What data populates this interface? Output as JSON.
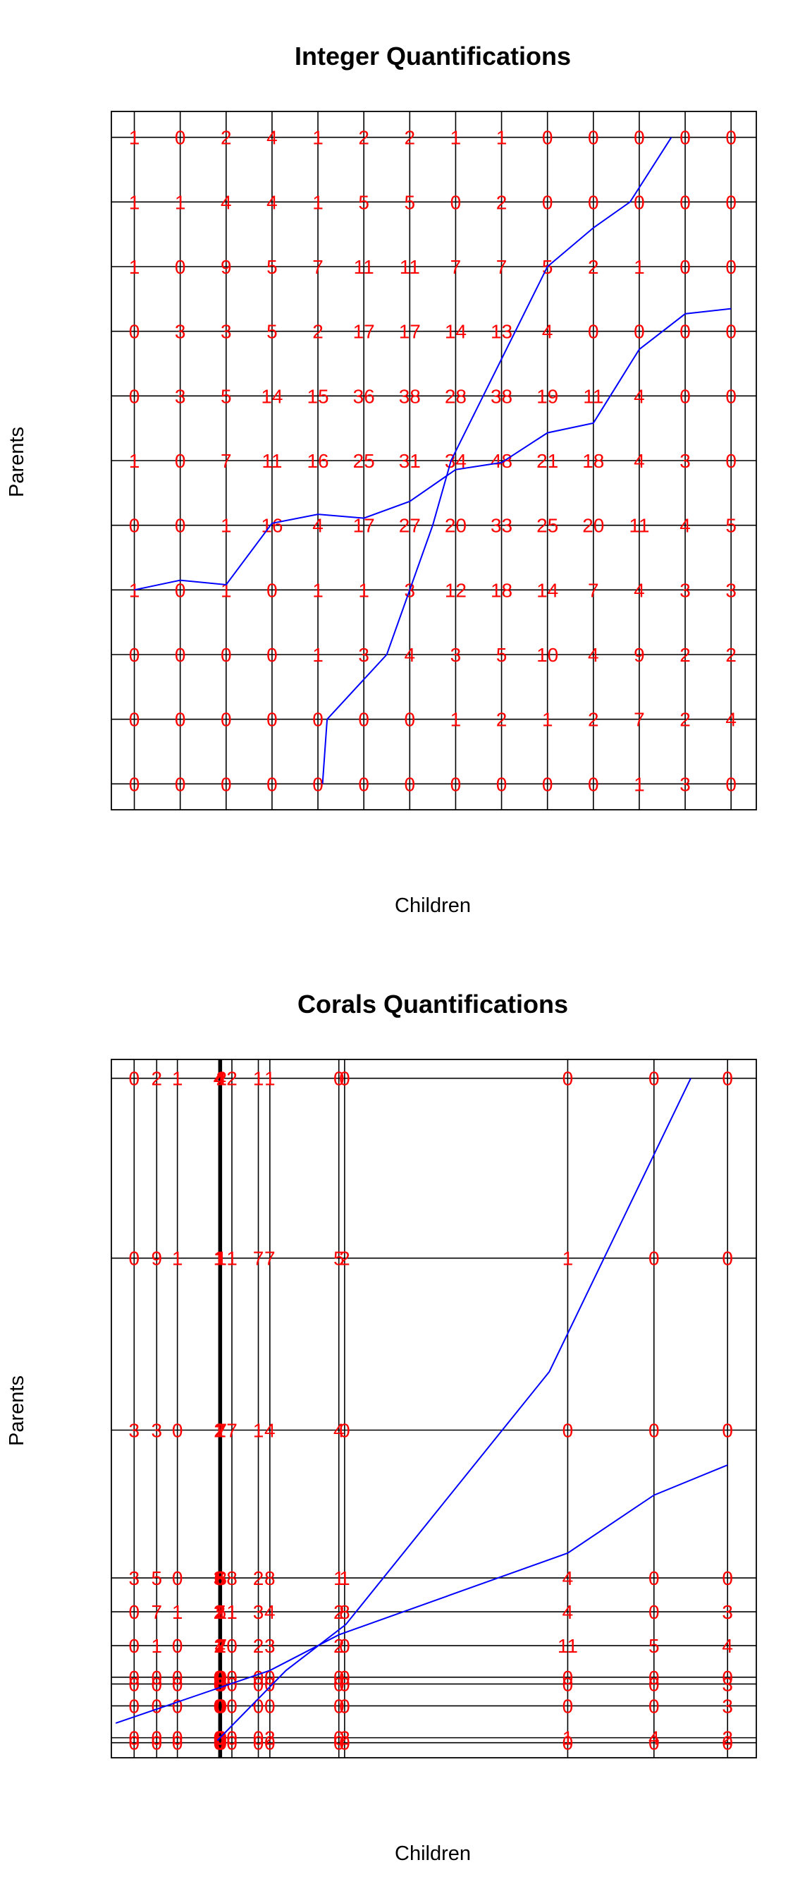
{
  "chart_data": [
    {
      "type": "table",
      "title": "Integer Quantifications",
      "xlabel": "Children",
      "ylabel": "Parents",
      "x_scores": [
        1,
        2,
        3,
        4,
        5,
        6,
        7,
        8,
        9,
        10,
        11,
        12,
        13,
        14
      ],
      "y_scores": [
        1,
        2,
        3,
        4,
        5,
        6,
        7,
        8,
        9,
        10,
        11
      ],
      "xlim": [
        0.5,
        14.55
      ],
      "ylim": [
        0.6,
        11.4
      ],
      "counts": [
        [
          0,
          0,
          0,
          0,
          0,
          0,
          0,
          0,
          0,
          0,
          0,
          1,
          3,
          0
        ],
        [
          0,
          0,
          0,
          0,
          0,
          0,
          0,
          1,
          2,
          1,
          2,
          7,
          2,
          4
        ],
        [
          0,
          0,
          0,
          0,
          1,
          3,
          4,
          3,
          5,
          10,
          4,
          9,
          2,
          2
        ],
        [
          1,
          0,
          1,
          0,
          1,
          1,
          3,
          12,
          18,
          14,
          7,
          4,
          3,
          3
        ],
        [
          0,
          0,
          1,
          16,
          4,
          17,
          27,
          20,
          33,
          25,
          20,
          11,
          4,
          5
        ],
        [
          1,
          0,
          7,
          11,
          16,
          25,
          31,
          34,
          48,
          21,
          18,
          4,
          3,
          0
        ],
        [
          0,
          3,
          5,
          14,
          15,
          36,
          38,
          28,
          38,
          19,
          11,
          4,
          0,
          0
        ],
        [
          0,
          3,
          3,
          5,
          2,
          17,
          17,
          14,
          13,
          4,
          0,
          0,
          0,
          0
        ],
        [
          1,
          0,
          9,
          5,
          7,
          11,
          11,
          7,
          7,
          5,
          2,
          1,
          0,
          0
        ],
        [
          1,
          1,
          4,
          4,
          1,
          5,
          5,
          0,
          2,
          0,
          0,
          0,
          0,
          0
        ],
        [
          1,
          0,
          2,
          4,
          1,
          2,
          2,
          1,
          1,
          0,
          0,
          0,
          0,
          0
        ]
      ],
      "series": [
        {
          "points": [
            [
              1,
              4
            ],
            [
              2,
              4.15
            ],
            [
              3,
              4.08
            ],
            [
              4,
              5.03
            ],
            [
              5,
              5.17
            ],
            [
              6,
              5.11
            ],
            [
              7,
              5.37
            ],
            [
              8,
              5.86
            ],
            [
              9,
              5.97
            ],
            [
              10,
              6.43
            ],
            [
              11,
              6.58
            ],
            [
              12,
              7.72
            ],
            [
              13,
              8.27
            ],
            [
              14,
              8.35
            ]
          ]
        },
        {
          "points": [
            [
              5.1,
              1
            ],
            [
              5.2,
              2
            ],
            [
              6.5,
              3
            ],
            [
              7,
              4
            ],
            [
              7.5,
              5
            ],
            [
              7.9,
              6
            ],
            [
              8.6,
              7
            ],
            [
              9.3,
              8
            ],
            [
              10,
              9
            ],
            [
              11,
              9.6
            ],
            [
              11.8,
              10
            ],
            [
              12.7,
              11
            ]
          ]
        }
      ]
    },
    {
      "type": "table",
      "title": "Corals Quantifications",
      "xlabel": "Children",
      "ylabel": "Parents",
      "x_scores": [
        1,
        1.98,
        2.88,
        4.68,
        4.7,
        4.72,
        4.74,
        4.77,
        4.8,
        5.25,
        6.4,
        6.9,
        9.9,
        10.15,
        19.85,
        23.6,
        26.8
      ],
      "y_scores": [
        0.35,
        0.68,
        2.8,
        4.25,
        4.7,
        6.8,
        9.05,
        11.3,
        21.12,
        32.55,
        44.5
      ],
      "xlim": [
        0.01,
        28.05
      ],
      "ylim": [
        -0.65,
        45.75
      ],
      "counts": [
        [
          0,
          0,
          0,
          0,
          0,
          0,
          0,
          0,
          0,
          0,
          0,
          0,
          0,
          0,
          0,
          0,
          0
        ],
        [
          0,
          0,
          0,
          0,
          0,
          0,
          0,
          0,
          0,
          0,
          0,
          2,
          0,
          2,
          1,
          4,
          2
        ],
        [
          0,
          0,
          0,
          0,
          0,
          0,
          0,
          0,
          0,
          0,
          0,
          0,
          0,
          0,
          0,
          0,
          3
        ],
        [
          0,
          0,
          0,
          0,
          0,
          0,
          0,
          0,
          0,
          0,
          0,
          0,
          0,
          0,
          0,
          0,
          3
        ],
        [
          0,
          0,
          0,
          0,
          0,
          0,
          0,
          0,
          0,
          0,
          0,
          0,
          0,
          0,
          0,
          0,
          0
        ],
        [
          0,
          1,
          0,
          1,
          2,
          2,
          4,
          2,
          7,
          0,
          2,
          3,
          2,
          0,
          11,
          5,
          4
        ],
        [
          0,
          7,
          1,
          2,
          1,
          2,
          2,
          5,
          1,
          1,
          3,
          4,
          2,
          8,
          4,
          0,
          3
        ],
        [
          3,
          5,
          0,
          3,
          6,
          6,
          6,
          6,
          8,
          8,
          2,
          8,
          1,
          1,
          4,
          0,
          0
        ],
        [
          3,
          3,
          0,
          1,
          2,
          2,
          2,
          1,
          7,
          7,
          1,
          4,
          4,
          0,
          0,
          0,
          0
        ],
        [
          0,
          9,
          1,
          1,
          1,
          1,
          1,
          1,
          1,
          1,
          7,
          7,
          5,
          2,
          1,
          0,
          0
        ],
        [
          0,
          2,
          1,
          4,
          4,
          4,
          4,
          4,
          2,
          2,
          1,
          1,
          0,
          0,
          0,
          0,
          0
        ]
      ],
      "series": [
        {
          "points": [
            [
              0.2,
              1.65
            ],
            [
              6.9,
              5.15
            ],
            [
              9.9,
              7.52
            ],
            [
              19.85,
              12.95
            ],
            [
              23.6,
              16.8
            ],
            [
              26.8,
              18.8
            ]
          ]
        },
        {
          "points": [
            [
              4.62,
              0.5
            ],
            [
              7.6,
              5.15
            ],
            [
              10.2,
              8.2
            ],
            [
              19.05,
              25
            ],
            [
              25.2,
              44.5
            ]
          ]
        }
      ]
    }
  ]
}
